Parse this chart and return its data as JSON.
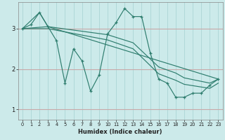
{
  "xlabel": "Humidex (Indice chaleur)",
  "bg_color": "#cceaea",
  "line_color": "#2e7d6e",
  "grid_color": "#b0d8d8",
  "xlim": [
    -0.5,
    23.5
  ],
  "ylim": [
    0.75,
    3.65
  ],
  "yticks": [
    1,
    2,
    3
  ],
  "xticks": [
    0,
    1,
    2,
    3,
    4,
    5,
    6,
    7,
    8,
    9,
    10,
    11,
    12,
    13,
    14,
    15,
    16,
    17,
    18,
    19,
    20,
    21,
    22,
    23
  ],
  "line_zigzag": {
    "x": [
      0,
      1,
      2,
      3,
      4,
      5,
      6,
      7,
      8,
      9,
      10,
      11,
      12,
      13,
      14,
      15,
      16,
      17,
      18,
      19,
      20,
      21,
      22,
      23
    ],
    "y": [
      3.0,
      3.1,
      3.4,
      3.05,
      2.7,
      1.65,
      2.5,
      2.2,
      1.45,
      1.85,
      2.87,
      3.15,
      3.5,
      3.3,
      3.3,
      2.4,
      1.75,
      1.65,
      1.3,
      1.3,
      1.4,
      1.4,
      1.6,
      1.75
    ]
  },
  "line_top": {
    "x": [
      0,
      2,
      3,
      23
    ],
    "y": [
      3.0,
      3.4,
      3.05,
      1.75
    ]
  },
  "line_mid1": {
    "x": [
      0,
      3,
      10,
      13,
      16,
      18,
      19,
      22,
      23
    ],
    "y": [
      3.0,
      3.05,
      2.85,
      2.65,
      2.05,
      1.9,
      1.78,
      1.65,
      1.75
    ]
  },
  "line_mid2": {
    "x": [
      0,
      3,
      10,
      13,
      16,
      18,
      19,
      22,
      23
    ],
    "y": [
      3.0,
      3.0,
      2.72,
      2.5,
      1.88,
      1.72,
      1.62,
      1.52,
      1.65
    ]
  }
}
